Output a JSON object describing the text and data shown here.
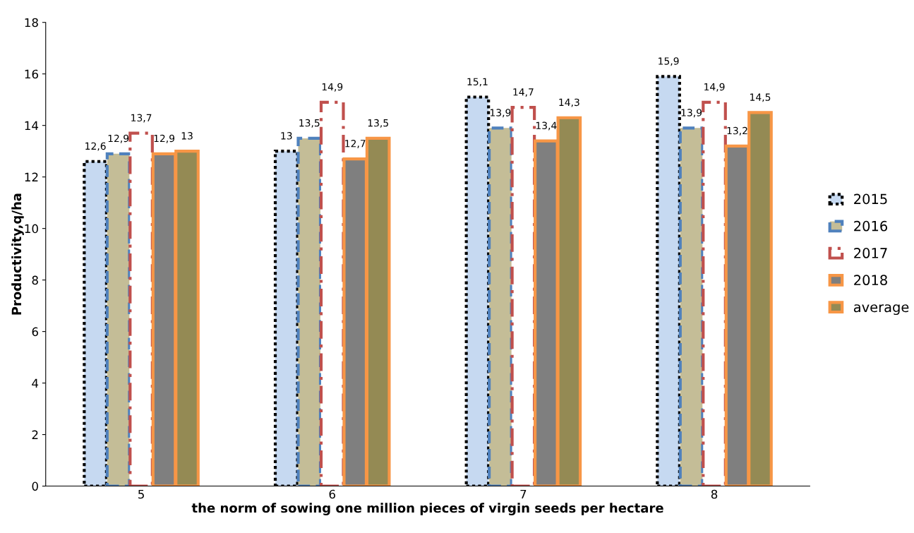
{
  "chart_data": {
    "type": "bar",
    "xlabel": "the norm of sowing one million pieces of virgin seeds per hectare",
    "ylabel": "Productivity,q/ha",
    "categories": [
      "5",
      "6",
      "7",
      "8"
    ],
    "series": [
      {
        "name": "2015",
        "color": "#c6d9f1",
        "line_style": "dotted",
        "values": [
          12.6,
          13,
          15.1,
          15.9
        ],
        "value_labels": [
          "12,6",
          "13",
          "15,1",
          "15,9"
        ]
      },
      {
        "name": "2016",
        "color": "#c4bd97",
        "line_style": "dashed",
        "values": [
          12.9,
          13.5,
          13.9,
          13.9
        ],
        "value_labels": [
          "12,9",
          "13,5",
          "13,9",
          "13,9"
        ]
      },
      {
        "name": "2017",
        "color": "#ffffff",
        "line_style": "dashdot",
        "values": [
          13.7,
          14.9,
          14.7,
          14.9
        ],
        "value_labels": [
          "13,7",
          "14,9",
          "14,7",
          "14,9"
        ]
      },
      {
        "name": "2018",
        "color": "#7f7f7f",
        "line_style": "solid",
        "values": [
          12.9,
          12.7,
          13.4,
          13.2
        ],
        "value_labels": [
          "12,9",
          "12,7",
          "13,4",
          "13,2"
        ]
      },
      {
        "name": "average",
        "color": "#948a54",
        "line_style": "solid",
        "values": [
          13,
          13.5,
          14.3,
          14.5
        ],
        "value_labels": [
          "13",
          "13,5",
          "14,3",
          "14,5"
        ]
      }
    ],
    "ylim": [
      0,
      18
    ],
    "yticks": [
      0,
      2,
      4,
      6,
      8,
      10,
      12,
      14,
      16,
      18
    ],
    "grid": false,
    "legend": "right"
  }
}
